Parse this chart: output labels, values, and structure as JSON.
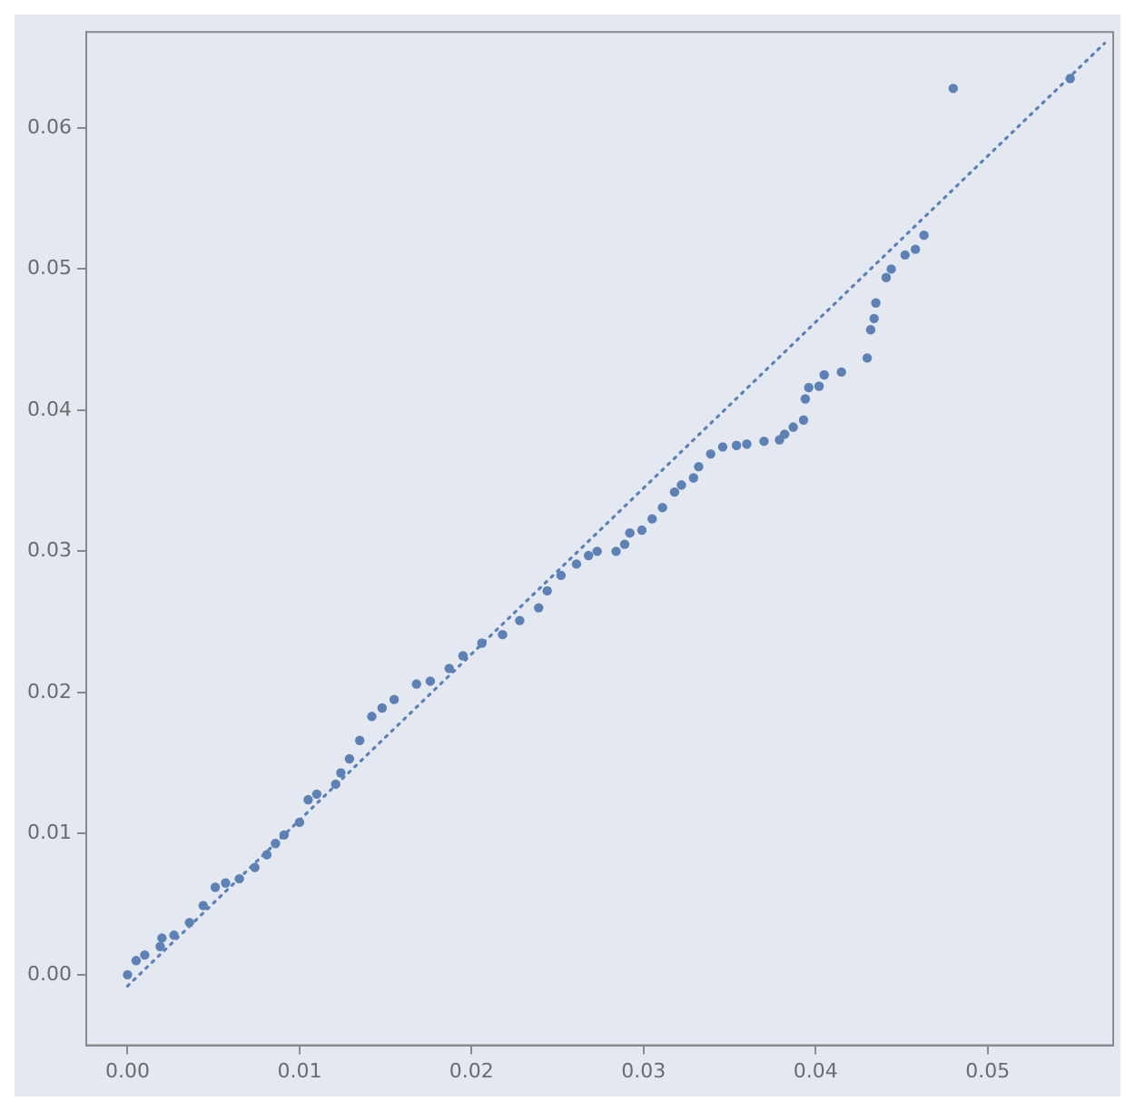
{
  "chart_data": {
    "type": "scatter",
    "marker": "circle",
    "grid": false,
    "legend": false,
    "xlim": [
      -0.0024,
      0.0573
    ],
    "ylim": [
      -0.005,
      0.0668
    ],
    "xticks": [
      {
        "value": 0,
        "label": "0.00"
      },
      {
        "value": 0.01,
        "label": "0.01"
      },
      {
        "value": 0.02,
        "label": "0.02"
      },
      {
        "value": 0.03,
        "label": "0.03"
      },
      {
        "value": 0.04,
        "label": "0.04"
      },
      {
        "value": 0.05,
        "label": "0.05"
      }
    ],
    "yticks": [
      {
        "value": 0,
        "label": "0.00"
      },
      {
        "value": 0.01,
        "label": "0.01"
      },
      {
        "value": 0.02,
        "label": "0.02"
      },
      {
        "value": 0.03,
        "label": "0.03"
      },
      {
        "value": 0.04,
        "label": "0.04"
      },
      {
        "value": 0.05,
        "label": "0.05"
      },
      {
        "value": 0.06,
        "label": "0.06"
      }
    ],
    "series": [
      {
        "type": "scatter",
        "color": "#5e81b5",
        "x": [
          0,
          0.0005,
          0.001,
          0.0019,
          0.002,
          0.0027,
          0.0036,
          0.0044,
          0.0051,
          0.0057,
          0.0065,
          0.0074,
          0.0081,
          0.0086,
          0.0091,
          0.01,
          0.0105,
          0.011,
          0.0121,
          0.0124,
          0.0129,
          0.0135,
          0.0142,
          0.0148,
          0.0155,
          0.0168,
          0.0176,
          0.0187,
          0.0195,
          0.0206,
          0.0218,
          0.0228,
          0.0239,
          0.0244,
          0.0252,
          0.0261,
          0.0268,
          0.0273,
          0.0284,
          0.0289,
          0.0292,
          0.0299,
          0.0305,
          0.0311,
          0.0318,
          0.0322,
          0.0329,
          0.0332,
          0.0339,
          0.0346,
          0.0354,
          0.036,
          0.037,
          0.0379,
          0.0382,
          0.0387,
          0.0393,
          0.0394,
          0.0396,
          0.0402,
          0.0405,
          0.0415,
          0.043,
          0.0432,
          0.0434,
          0.0435,
          0.0441,
          0.0444,
          0.0452,
          0.0458,
          0.0463,
          0.048,
          0.0548
        ],
        "values": [
          0,
          0.001,
          0.0014,
          0.002,
          0.0026,
          0.0028,
          0.0037,
          0.0049,
          0.0062,
          0.0065,
          0.0068,
          0.0076,
          0.0085,
          0.0093,
          0.0099,
          0.0108,
          0.0124,
          0.0128,
          0.0135,
          0.0143,
          0.0153,
          0.0166,
          0.0183,
          0.0189,
          0.0195,
          0.0206,
          0.0208,
          0.0217,
          0.0226,
          0.0235,
          0.0241,
          0.0251,
          0.026,
          0.0272,
          0.0283,
          0.0291,
          0.0297,
          0.03,
          0.03,
          0.0305,
          0.0313,
          0.0315,
          0.0323,
          0.0331,
          0.0342,
          0.0347,
          0.0352,
          0.036,
          0.0369,
          0.0374,
          0.0375,
          0.0376,
          0.0378,
          0.0379,
          0.0383,
          0.0388,
          0.0393,
          0.0408,
          0.0416,
          0.0417,
          0.0425,
          0.0427,
          0.0437,
          0.0457,
          0.0465,
          0.0476,
          0.0494,
          0.05,
          0.051,
          0.0514,
          0.0524,
          0.0628,
          0.0635
        ]
      },
      {
        "type": "line",
        "color": "#5e81b5",
        "line_style": "dotted",
        "marker": "none",
        "x": [
          0,
          0.0568
        ],
        "values": [
          -0.0008,
          0.066
        ]
      }
    ]
  }
}
